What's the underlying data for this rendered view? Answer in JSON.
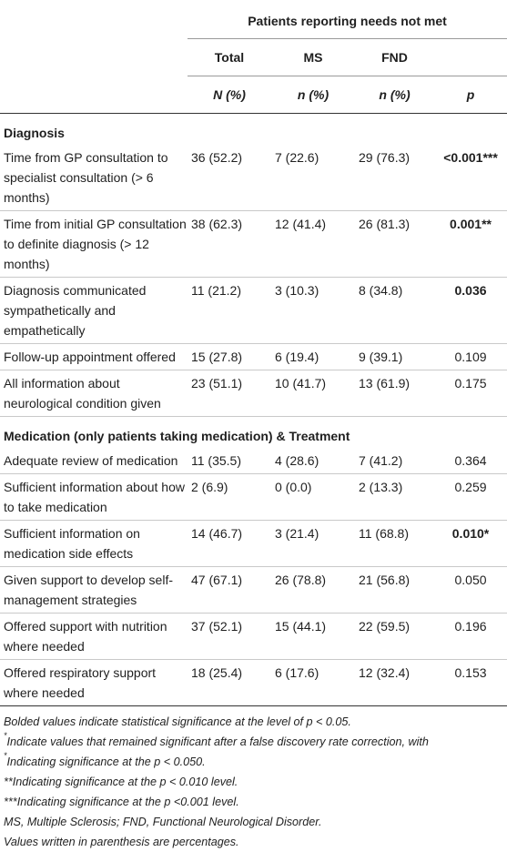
{
  "header": {
    "group_title": "Patients reporting needs not met",
    "columns": [
      "Total",
      "MS",
      "FND"
    ],
    "subheaders": [
      "N (%)",
      "n (%)",
      "n (%)",
      "p"
    ]
  },
  "sections": [
    {
      "title": "Diagnosis",
      "rows": [
        {
          "label": "Time from GP consultation to specialist consultation (> 6 months)",
          "total": "36 (52.2)",
          "ms": "7 (22.6)",
          "fnd": "29 (76.3)",
          "p": "<0.001***",
          "bold": true
        },
        {
          "label": "Time from initial GP consultation to definite diagnosis (> 12 months)",
          "total": "38 (62.3)",
          "ms": "12 (41.4)",
          "fnd": "26 (81.3)",
          "p": "0.001**",
          "bold": true
        },
        {
          "label": "Diagnosis communicated sympathetically and empathetically",
          "total": "11 (21.2)",
          "ms": "3 (10.3)",
          "fnd": "8 (34.8)",
          "p": "0.036",
          "bold": true
        },
        {
          "label": "Follow-up appointment offered",
          "total": "15 (27.8)",
          "ms": "6 (19.4)",
          "fnd": "9 (39.1)",
          "p": "0.109",
          "bold": false
        },
        {
          "label": "All information about neurological condition given",
          "total": "23 (51.1)",
          "ms": "10 (41.7)",
          "fnd": "13 (61.9)",
          "p": "0.175",
          "bold": false
        }
      ]
    },
    {
      "title": "Medication (only patients taking medication) & Treatment",
      "rows": [
        {
          "label": "Adequate review of medication",
          "total": "11 (35.5)",
          "ms": "4 (28.6)",
          "fnd": "7 (41.2)",
          "p": "0.364",
          "bold": false
        },
        {
          "label": "Sufficient information about how to take medication",
          "total": "2 (6.9)",
          "ms": "0 (0.0)",
          "fnd": "2 (13.3)",
          "p": "0.259",
          "bold": false
        },
        {
          "label": "Sufficient information on medication side effects",
          "total": "14 (46.7)",
          "ms": "3 (21.4)",
          "fnd": "11 (68.8)",
          "p": "0.010*",
          "bold": true
        },
        {
          "label": "Given support to develop self-management strategies",
          "total": "47 (67.1)",
          "ms": "26 (78.8)",
          "fnd": "21 (56.8)",
          "p": "0.050",
          "bold": false
        },
        {
          "label": "Offered support with nutrition where needed",
          "total": "37 (52.1)",
          "ms": "15 (44.1)",
          "fnd": "22 (59.5)",
          "p": "0.196",
          "bold": false
        },
        {
          "label": "Offered respiratory support where needed",
          "total": "18 (25.4)",
          "ms": "6 (17.6)",
          "fnd": "12 (32.4)",
          "p": "0.153",
          "bold": false
        }
      ]
    }
  ],
  "notes": {
    "line1": "Bolded values indicate statistical significance at the level of p < 0.05.",
    "line2_mark": "*",
    "line2": "Indicate values that remained significant after a false discovery rate correction, with",
    "line3_mark": "*",
    "line3": "Indicating significance at the p < 0.050.",
    "line4": "**Indicating significance at the p < 0.010 level.",
    "line5": "***Indicating significance at the p <0.001 level.",
    "line6": "MS, Multiple Sclerosis; FND, Functional Neurological Disorder.",
    "line7": "Values written in parenthesis are percentages."
  }
}
